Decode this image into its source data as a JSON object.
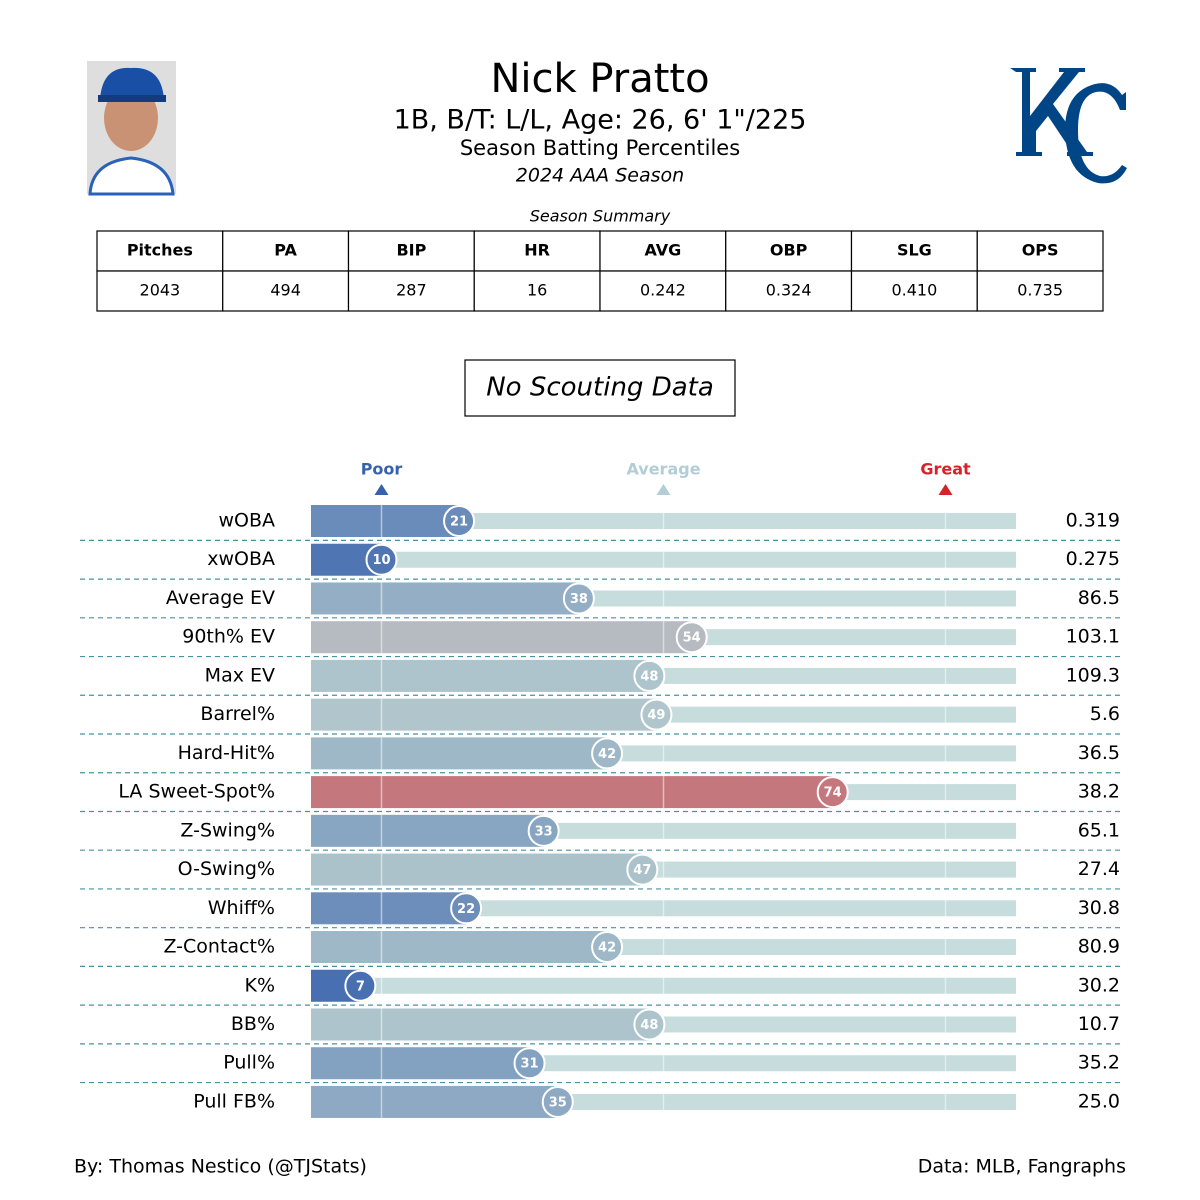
{
  "header": {
    "name": "Nick Pratto",
    "bio": "1B, B/T: L/L, Age: 26, 6' 1\"/225",
    "subtitle": "Season Batting Percentiles",
    "season": "2024 AAA Season"
  },
  "table": {
    "title": "Season Summary",
    "columns": [
      "Pitches",
      "PA",
      "BIP",
      "HR",
      "AVG",
      "OBP",
      "SLG",
      "OPS"
    ],
    "rows": [
      [
        "2043",
        "494",
        "287",
        "16",
        "0.242",
        "0.324",
        "0.410",
        "0.735"
      ]
    ]
  },
  "note": "No Scouting Data",
  "chart_data": {
    "type": "bar",
    "orientation": "horizontal",
    "categories": [
      "wOBA",
      "xwOBA",
      "Average EV",
      "90th% EV",
      "Max EV",
      "Barrel%",
      "Hard-Hit%",
      "LA Sweet-Spot%",
      "Z-Swing%",
      "O-Swing%",
      "Whiff%",
      "Z-Contact%",
      "K%",
      "BB%",
      "Pull%",
      "Pull FB%"
    ],
    "values": [
      21,
      10,
      38,
      54,
      48,
      49,
      42,
      74,
      33,
      47,
      22,
      42,
      7,
      48,
      31,
      35
    ],
    "stat_labels": [
      "0.319",
      "0.275",
      "86.5",
      "103.1",
      "109.3",
      "5.6",
      "36.5",
      "38.2",
      "65.1",
      "27.4",
      "30.8",
      "80.9",
      "30.2",
      "10.7",
      "35.2",
      "25.0"
    ],
    "xlim": [
      0,
      100
    ],
    "colormap": [
      "#3661ad",
      "#b2c8cd",
      "#d82129"
    ],
    "scale_labels": [
      {
        "value": 10,
        "label": "Poor",
        "color": "#3661ad"
      },
      {
        "value": 50,
        "label": "Average",
        "color": "#b3cdd6"
      },
      {
        "value": 90,
        "label": "Great",
        "color": "#d82129"
      }
    ]
  },
  "footer": {
    "credit": "By: Thomas Nestico (@TJStats)",
    "source": "Data: MLB, Fangraphs"
  }
}
